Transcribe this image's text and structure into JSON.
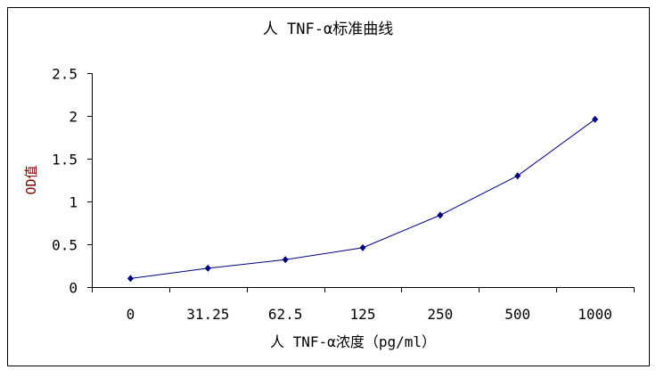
{
  "chart_data": {
    "type": "line",
    "title": "人 TNF-α标准曲线",
    "xlabel": "人 TNF-α浓度（pg/ml）",
    "ylabel": "OD值",
    "categories": [
      "0",
      "31.25",
      "62.5",
      "125",
      "250",
      "500",
      "1000"
    ],
    "series": [
      {
        "values": [
          0.1,
          0.22,
          0.32,
          0.46,
          0.84,
          1.3,
          1.96
        ]
      }
    ],
    "ylim": [
      0,
      2.5
    ],
    "yticks": [
      "0",
      "0.5",
      "1",
      "1.5",
      "2",
      "2.5"
    ],
    "grid": false,
    "legend": "none",
    "colors": {
      "line": "#000080",
      "marker": "#000080"
    }
  }
}
